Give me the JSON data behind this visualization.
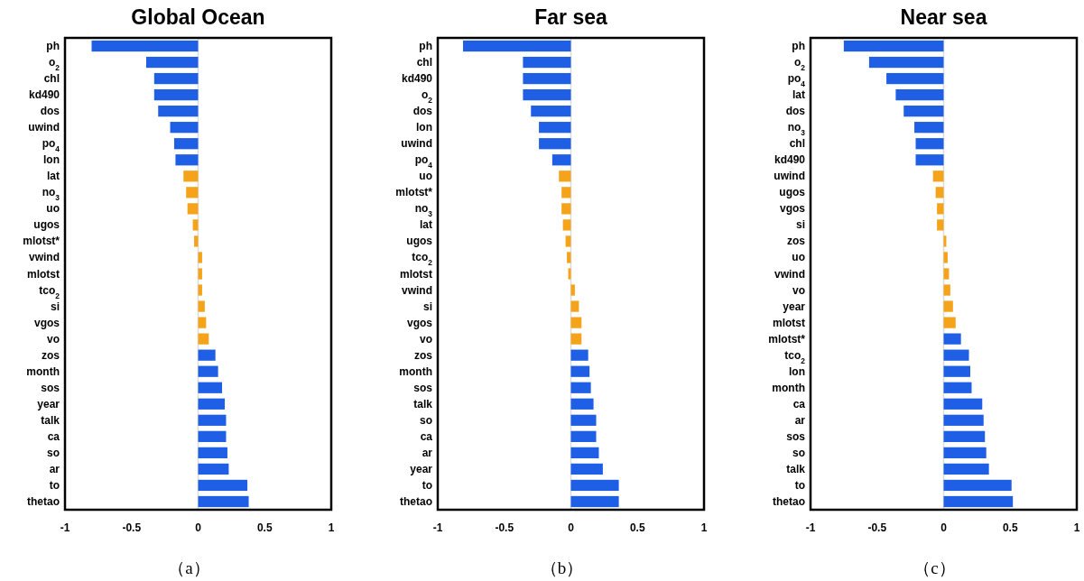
{
  "chart_data": [
    {
      "type": "bar",
      "orientation": "horizontal",
      "title": "Global Ocean",
      "categories": [
        "ph",
        "o$_{2}$",
        "chl",
        "kd490",
        "dos",
        "uwind",
        "po$_{4}$",
        "lon",
        "lat",
        "no$_{3}$",
        "uo",
        "ugos",
        "mlotst*",
        "vwind",
        "mlotst",
        "tco$_{2}$",
        "si",
        "vgos",
        "vo",
        "zos",
        "month",
        "sos",
        "year",
        "talk",
        "ca",
        "so",
        "ar",
        "to",
        "thetao"
      ],
      "values": [
        -0.8,
        -0.39,
        -0.33,
        -0.33,
        -0.3,
        -0.21,
        -0.18,
        -0.17,
        -0.11,
        -0.09,
        -0.08,
        -0.04,
        -0.03,
        0.03,
        0.03,
        0.03,
        0.05,
        0.06,
        0.08,
        0.13,
        0.15,
        0.18,
        0.2,
        0.21,
        0.21,
        0.22,
        0.23,
        0.37,
        0.38
      ],
      "colors": [
        "#1f5fe6",
        "#1f5fe6",
        "#1f5fe6",
        "#1f5fe6",
        "#1f5fe6",
        "#1f5fe6",
        "#1f5fe6",
        "#1f5fe6",
        "#f5a31a",
        "#f5a31a",
        "#f5a31a",
        "#f5a31a",
        "#f5a31a",
        "#f5a31a",
        "#f5a31a",
        "#f5a31a",
        "#f5a31a",
        "#f5a31a",
        "#f5a31a",
        "#1f5fe6",
        "#1f5fe6",
        "#1f5fe6",
        "#1f5fe6",
        "#1f5fe6",
        "#1f5fe6",
        "#1f5fe6",
        "#1f5fe6",
        "#1f5fe6",
        "#1f5fe6"
      ],
      "xlim": [
        -1,
        1
      ],
      "xticks": [
        -1,
        -0.5,
        0,
        0.5,
        1
      ],
      "ref_lines": [
        {
          "axis": "x",
          "value": 0,
          "color": "#dcdcdc"
        }
      ],
      "annotations": [
        "（a）"
      ]
    },
    {
      "type": "bar",
      "orientation": "horizontal",
      "title": "Far sea",
      "categories": [
        "ph",
        "chl",
        "kd490",
        "o$_{2}$",
        "dos",
        "lon",
        "uwind",
        "po$_{4}$",
        "uo",
        "mlotst*",
        "no$_{3}$",
        "lat",
        "ugos",
        "tco$_{2}$",
        "mlotst",
        "vwind",
        "si",
        "vgos",
        "vo",
        "zos",
        "month",
        "sos",
        "talk",
        "so",
        "ca",
        "ar",
        "year",
        "to",
        "thetao"
      ],
      "values": [
        -0.81,
        -0.36,
        -0.36,
        -0.36,
        -0.3,
        -0.24,
        -0.24,
        -0.14,
        -0.09,
        -0.07,
        -0.07,
        -0.06,
        -0.04,
        -0.03,
        -0.02,
        0.03,
        0.06,
        0.08,
        0.08,
        0.13,
        0.14,
        0.15,
        0.17,
        0.19,
        0.19,
        0.21,
        0.24,
        0.36,
        0.36
      ],
      "colors": [
        "#1f5fe6",
        "#1f5fe6",
        "#1f5fe6",
        "#1f5fe6",
        "#1f5fe6",
        "#1f5fe6",
        "#1f5fe6",
        "#1f5fe6",
        "#f5a31a",
        "#f5a31a",
        "#f5a31a",
        "#f5a31a",
        "#f5a31a",
        "#f5a31a",
        "#f5a31a",
        "#f5a31a",
        "#f5a31a",
        "#f5a31a",
        "#f5a31a",
        "#1f5fe6",
        "#1f5fe6",
        "#1f5fe6",
        "#1f5fe6",
        "#1f5fe6",
        "#1f5fe6",
        "#1f5fe6",
        "#1f5fe6",
        "#1f5fe6",
        "#1f5fe6"
      ],
      "xlim": [
        -1,
        1
      ],
      "xticks": [
        -1,
        -0.5,
        0,
        0.5,
        1
      ],
      "ref_lines": [
        {
          "axis": "x",
          "value": 0,
          "color": "#dcdcdc"
        }
      ],
      "annotations": [
        "（b）"
      ]
    },
    {
      "type": "bar",
      "orientation": "horizontal",
      "title": "Near sea",
      "categories": [
        "ph",
        "o$_{2}$",
        "po$_{4}$",
        "lat",
        "dos",
        "no$_{3}$",
        "chl",
        "kd490",
        "uwind",
        "ugos",
        "vgos",
        "si",
        "zos",
        "uo",
        "vwind",
        "vo",
        "year",
        "mlotst",
        "mlotst*",
        "tco$_{2}$",
        "lon",
        "month",
        "ca",
        "ar",
        "sos",
        "so",
        "talk",
        "to",
        "thetao"
      ],
      "values": [
        -0.75,
        -0.56,
        -0.43,
        -0.36,
        -0.3,
        -0.22,
        -0.21,
        -0.21,
        -0.08,
        -0.06,
        -0.05,
        -0.05,
        0.02,
        0.03,
        0.04,
        0.05,
        0.07,
        0.09,
        0.13,
        0.19,
        0.2,
        0.21,
        0.29,
        0.3,
        0.31,
        0.32,
        0.34,
        0.51,
        0.52
      ],
      "colors": [
        "#1f5fe6",
        "#1f5fe6",
        "#1f5fe6",
        "#1f5fe6",
        "#1f5fe6",
        "#1f5fe6",
        "#1f5fe6",
        "#1f5fe6",
        "#f5a31a",
        "#f5a31a",
        "#f5a31a",
        "#f5a31a",
        "#f5a31a",
        "#f5a31a",
        "#f5a31a",
        "#f5a31a",
        "#f5a31a",
        "#f5a31a",
        "#1f5fe6",
        "#1f5fe6",
        "#1f5fe6",
        "#1f5fe6",
        "#1f5fe6",
        "#1f5fe6",
        "#1f5fe6",
        "#1f5fe6",
        "#1f5fe6",
        "#1f5fe6",
        "#1f5fe6"
      ],
      "xlim": [
        -1,
        1
      ],
      "xticks": [
        -1,
        -0.5,
        0,
        0.5,
        1
      ],
      "ref_lines": [
        {
          "axis": "x",
          "value": 0,
          "color": "#dcdcdc"
        }
      ],
      "annotations": [
        "（c）"
      ]
    }
  ]
}
